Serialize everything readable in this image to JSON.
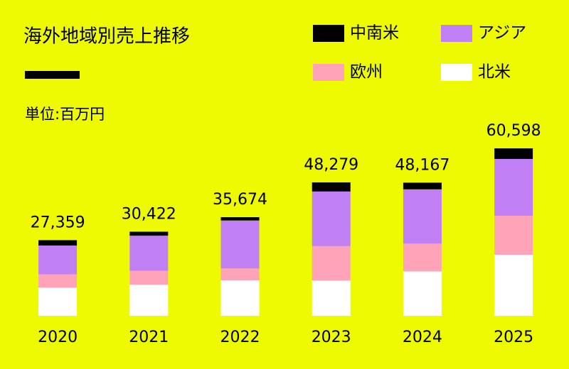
{
  "chart_data": {
    "type": "stacked_bar",
    "title": "海外地域別売上推移",
    "unit": "単位:百万円",
    "categories": [
      "2020",
      "2021",
      "2022",
      "2023",
      "2024",
      "2025"
    ],
    "series": [
      {
        "name": "北米",
        "color": "#ffffff",
        "values": [
          10170,
          11258,
          12842,
          12717,
          16053,
          22085
        ]
      },
      {
        "name": "欧州",
        "color": "#ffa3b8",
        "values": [
          4842,
          5030,
          4281,
          12482,
          10063,
          14124
        ]
      },
      {
        "name": "アジア",
        "color": "#c17ff4",
        "values": [
          10411,
          12694,
          17361,
          19782,
          19647,
          20544
        ]
      },
      {
        "name": "中南米",
        "color": "#000000",
        "values": [
          1936,
          1440,
          1190,
          3298,
          2404,
          3845
        ]
      }
    ],
    "totals": {
      "values": [
        27359,
        30422,
        35674,
        48279,
        48167,
        60598
      ],
      "value_labels": [
        "27,359",
        "30,422",
        "35,674",
        "48,279",
        "48,167",
        "60,598"
      ]
    }
  }
}
